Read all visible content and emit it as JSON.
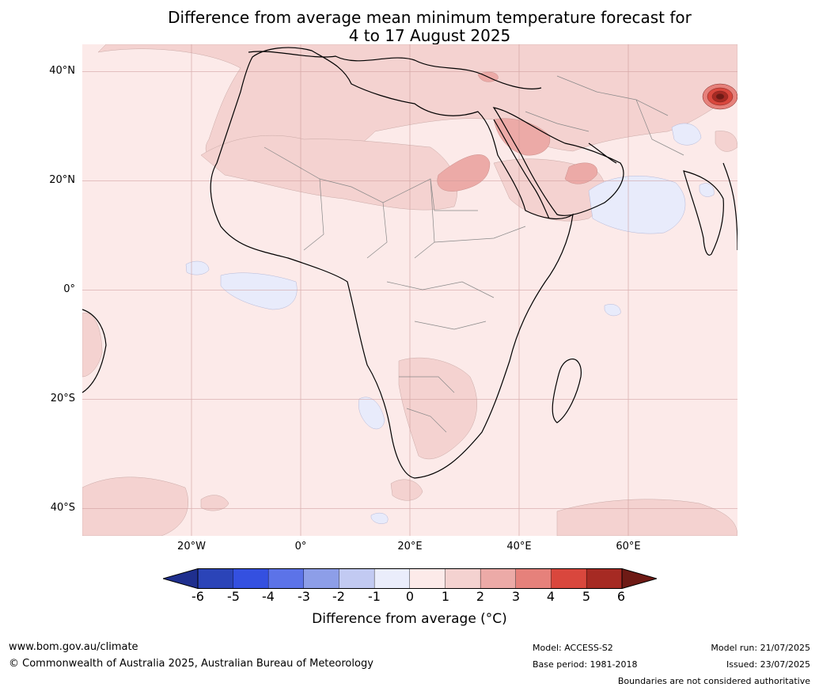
{
  "title": {
    "line1": "Difference from average mean minimum temperature forecast for",
    "line2": "4 to 17 August 2025"
  },
  "axes": {
    "lat_labels": [
      "40°N",
      "20°N",
      "0°",
      "20°S",
      "40°S"
    ],
    "lon_labels": [
      "20°W",
      "0°",
      "20°E",
      "40°E",
      "60°E"
    ]
  },
  "map": {
    "extent": {
      "lon_min": -40,
      "lon_max": 80,
      "lat_min": -45,
      "lat_max": 45
    },
    "background_anomaly": "0 to 1",
    "regions_1_to_2": [
      "North Africa",
      "Arabian Peninsula",
      "Iran",
      "Southern Africa interior",
      "Southern Ocean bands"
    ],
    "regions_2_to_3": [
      "Central Sahara (Libya/Chad/Sudan)",
      "Central Saudi Arabia",
      "Southern Arabia"
    ],
    "regions_above_5": [
      "Western Himalaya / Kashmir"
    ],
    "regions_below_0": [
      "Arabian Sea",
      "Gulf of Guinea",
      "Off Namibia",
      "Pakistan/Afghanistan border",
      "Western India"
    ]
  },
  "colorbar": {
    "ticks": [
      "-6",
      "-5",
      "-4",
      "-3",
      "-2",
      "-1",
      "0",
      "1",
      "2",
      "3",
      "4",
      "5",
      "6"
    ],
    "colors": [
      "#1f2f8e",
      "#2b44b8",
      "#3450e0",
      "#5c73e8",
      "#8d9ee8",
      "#c2caf2",
      "#eaedfb",
      "#fceae9",
      "#f4d2d0",
      "#ecaaa7",
      "#e6817b",
      "#d9473d",
      "#a62a23",
      "#6e1a15"
    ],
    "label": "Difference from average ($^\\circ$C)",
    "label_display": "Difference from average (°C)"
  },
  "footer": {
    "website": "www.bom.gov.au/climate",
    "copyright": "© Commonwealth of Australia 2025, Australian Bureau of Meteorology",
    "model": "Model: ACCESS-S2",
    "base_period": "Base period: 1981-2018",
    "model_run": "Model run: 21/07/2025",
    "issued": "Issued: 23/07/2025",
    "disclaimer": "Boundaries are not considered authoritative"
  }
}
